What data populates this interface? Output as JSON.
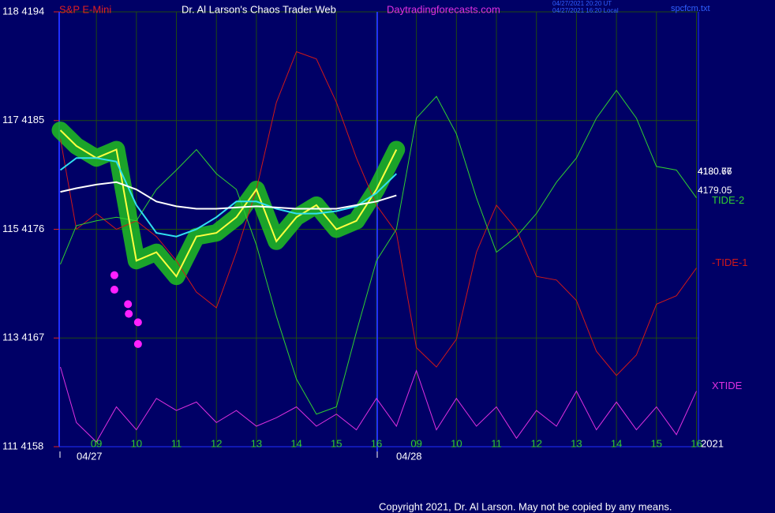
{
  "header": {
    "symbol": "S&P E-Mini",
    "site_title": "Dr. Al Larson's Chaos Trader Web",
    "site_url": "Daytradingforecasts.com",
    "time_ut": "04/27/2021 20:20 UT",
    "time_local": "04/27/2021 16:20 Local",
    "file": "spcfcm.txt"
  },
  "footer": {
    "copyright": "Copyright 2021, Dr. Al Larson. May not be copied by any means.",
    "dates": [
      "04/27",
      "04/28"
    ],
    "year": "2021"
  },
  "chart_data": {
    "type": "line",
    "x": [
      -0.9,
      -0.5,
      0,
      0.5,
      1,
      1.5,
      2,
      2.5,
      3,
      3.5,
      4,
      4.5,
      5,
      5.5,
      6,
      6.5,
      7,
      7.5,
      8,
      8.5,
      9,
      9.5,
      10,
      10.5,
      11,
      11.5,
      12,
      12.5,
      13,
      13.5,
      14,
      14.5,
      15
    ],
    "xlim": [
      -0.93,
      15.05
    ],
    "xticks": [
      {
        "value": 0,
        "label": "09"
      },
      {
        "value": 1,
        "label": "10"
      },
      {
        "value": 2,
        "label": "11"
      },
      {
        "value": 3,
        "label": "12"
      },
      {
        "value": 4,
        "label": "13"
      },
      {
        "value": 5,
        "label": "14"
      },
      {
        "value": 6,
        "label": "15"
      },
      {
        "value": 7,
        "label": "16"
      },
      {
        "value": 8,
        "label": "09"
      },
      {
        "value": 9,
        "label": "10"
      },
      {
        "value": 10,
        "label": "11"
      },
      {
        "value": 11,
        "label": "12"
      },
      {
        "value": 12,
        "label": "13"
      },
      {
        "value": 13,
        "label": "14"
      },
      {
        "value": 14,
        "label": "15"
      },
      {
        "value": 15,
        "label": "16"
      }
    ],
    "ylim": [
      4158,
      4194
    ],
    "yticks": [
      {
        "value": 4194,
        "label": "118  4194"
      },
      {
        "value": 4185,
        "label": "117  4185"
      },
      {
        "value": 4176,
        "label": "115  4176"
      },
      {
        "value": 4167,
        "label": "113  4167"
      },
      {
        "value": 4158,
        "label": "111  4158"
      }
    ],
    "grid": true,
    "series": [
      {
        "name": "-TIDE-1",
        "color": "#d01818",
        "values": [
          4183.5,
          4176.0,
          4177.3,
          4176.0,
          4176.7,
          4175.4,
          4173.4,
          4170.8,
          4169.5,
          4174.1,
          4179.3,
          4186.5,
          4190.7,
          4190.1,
          4186.5,
          4181.9,
          4178.0,
          4175.7,
          4166.2,
          4164.6,
          4166.9,
          4174.1,
          4178.0,
          4176.0,
          4172.1,
          4171.8,
          4170.1,
          4165.9,
          4163.9,
          4165.6,
          4169.8,
          4170.5,
          4172.8
        ]
      },
      {
        "name": "TIDE-2",
        "color": "#30d030",
        "values": [
          4173.1,
          4176.3,
          4176.7,
          4177.0,
          4176.7,
          4179.3,
          4180.9,
          4182.6,
          4180.6,
          4179.3,
          4174.7,
          4168.8,
          4163.6,
          4160.7,
          4161.3,
          4167.5,
          4173.4,
          4176.0,
          4185.2,
          4187.0,
          4183.9,
          4178.6,
          4174.1,
          4175.4,
          4177.3,
          4179.9,
          4181.9,
          4185.2,
          4187.5,
          4185.2,
          4181.2,
          4180.9,
          4178.6
        ]
      },
      {
        "name": "XTIDE",
        "color": "#e030e0",
        "values": [
          4164.6,
          4160.0,
          4158.4,
          4161.3,
          4159.4,
          4162.0,
          4161.0,
          4161.7,
          4160.0,
          4161.0,
          4159.7,
          4160.4,
          4161.3,
          4159.7,
          4160.7,
          4159.4,
          4162.0,
          4159.7,
          4164.3,
          4159.4,
          4162.0,
          4159.7,
          4161.3,
          4158.7,
          4161.0,
          4159.7,
          4162.6,
          4159.4,
          4161.7,
          4159.4,
          4161.3,
          4159.0,
          4162.6
        ]
      },
      {
        "color": "#ffff40",
        "values": [
          4184.2,
          4182.9,
          4181.9,
          4182.6,
          4173.4,
          4174.1,
          4172.1,
          4175.4,
          4175.7,
          4177.0,
          4179.3,
          4175.0,
          4177.0,
          4178.0,
          4176.0,
          4176.7,
          4179.3,
          4182.6,
          null,
          null,
          null,
          null,
          null,
          null,
          null,
          null,
          null,
          null,
          null,
          null,
          null,
          null,
          null
        ]
      },
      {
        "color": "#30e0f0",
        "values": [
          4180.9,
          4181.9,
          4181.9,
          4181.6,
          4178.0,
          4175.7,
          4175.4,
          4176.0,
          4177.0,
          4178.3,
          4178.3,
          4177.7,
          4177.3,
          4177.3,
          4177.5,
          4177.9,
          4179.0,
          4180.6,
          null,
          null,
          null,
          null,
          null,
          null,
          null,
          null,
          null,
          null,
          null,
          null,
          null,
          null,
          null
        ]
      },
      {
        "color": "#ffffff",
        "values": [
          4179.1,
          4179.4,
          4179.7,
          4179.9,
          4179.3,
          4178.3,
          4177.9,
          4177.7,
          4177.7,
          4177.8,
          4177.9,
          4177.8,
          4177.7,
          4177.7,
          4177.7,
          4178.0,
          4178.3,
          4178.8,
          null,
          null,
          null,
          null,
          null,
          null,
          null,
          null,
          null,
          null,
          null,
          null,
          null,
          null,
          null
        ]
      }
    ],
    "points": {
      "color": "#ff20ff",
      "x": [
        0.45,
        0.45,
        0.79,
        0.81,
        1.04,
        1.04
      ],
      "y": [
        4172.2,
        4171.0,
        4169.8,
        4169.0,
        4168.3,
        4166.5
      ]
    },
    "right_labels": [
      "4180.77",
      "4180.66",
      "4179.05"
    ]
  }
}
